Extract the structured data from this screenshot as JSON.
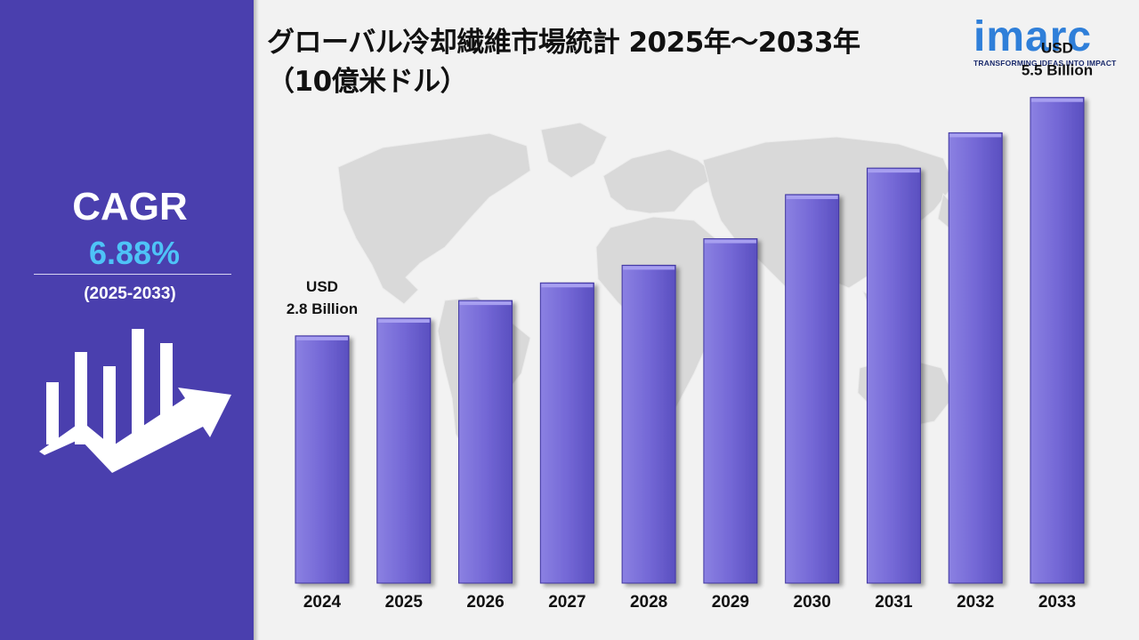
{
  "title_line1": "グローバル冷却繊維市場統計 2025年～2033年",
  "title_line2": "（10億米ドル）",
  "logo": {
    "name": "imarc",
    "tagline": "TRANSFORMING IDEAS INTO IMPACT"
  },
  "cagr": {
    "label": "CAGR",
    "value": "6.88%",
    "period": "(2025-2033)"
  },
  "colors": {
    "panel": "#4a3fae",
    "bar": "#7b70d8",
    "cagr_value": "#4ec3f7",
    "logo": "#2f7fd9"
  },
  "icons": [
    "growth-chart-arrow-icon",
    "world-map-background"
  ],
  "chart_data": {
    "type": "bar",
    "categories": [
      "2024",
      "2025",
      "2026",
      "2027",
      "2028",
      "2029",
      "2030",
      "2031",
      "2032",
      "2033"
    ],
    "values": [
      2.8,
      3.0,
      3.2,
      3.4,
      3.6,
      3.9,
      4.4,
      4.7,
      5.1,
      5.5
    ],
    "unit": "USD Billion",
    "ylim": [
      0,
      6
    ],
    "grid": false,
    "annotations": [
      {
        "category": "2024",
        "line1": "USD",
        "line2": "2.8 Billion"
      },
      {
        "category": "2033",
        "line1": "USD",
        "line2": "5.5 Billion"
      }
    ]
  }
}
